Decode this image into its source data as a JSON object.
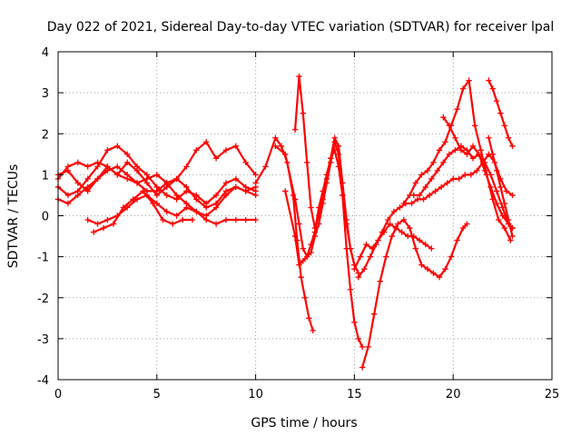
{
  "chart_data": {
    "type": "scatter",
    "title": "Day 022 of 2021, Sidereal Day-to-day VTEC variation (SDTVAR) for receiver lpal",
    "xlabel": "GPS time / hours",
    "ylabel": "SDTVAR / TECUs",
    "xlim": [
      0,
      25
    ],
    "ylim": [
      -4,
      4
    ],
    "xticks": [
      0,
      5,
      10,
      15,
      20,
      25
    ],
    "yticks": [
      -4,
      -3,
      -2,
      -1,
      0,
      1,
      2,
      3,
      4
    ],
    "grid": true,
    "marker": "+",
    "color": "#ff0000",
    "series": [
      {
        "x": [
          0.0,
          0.5,
          1.0,
          1.5,
          2.0,
          2.5,
          3.0,
          3.5,
          4.0,
          4.5,
          5.0,
          5.5,
          6.0,
          6.5,
          7.0,
          7.5,
          8.0,
          8.5,
          9.0,
          9.5,
          10.0
        ],
        "y": [
          1.0,
          1.1,
          0.8,
          0.6,
          0.9,
          1.2,
          1.0,
          1.3,
          1.1,
          0.8,
          0.5,
          0.7,
          0.9,
          1.2,
          1.6,
          1.8,
          1.4,
          1.6,
          1.7,
          1.3,
          1.0
        ]
      },
      {
        "x": [
          0.0,
          0.5,
          1.0,
          1.5,
          2.0,
          2.5,
          3.0,
          3.5,
          4.0,
          4.5,
          5.0,
          5.5,
          6.0,
          6.5,
          7.0,
          7.5,
          8.0,
          8.5,
          9.0,
          9.5,
          10.0
        ],
        "y": [
          0.7,
          0.5,
          0.6,
          0.9,
          1.2,
          1.6,
          1.7,
          1.5,
          1.2,
          1.0,
          0.7,
          0.5,
          0.4,
          0.6,
          0.5,
          0.3,
          0.5,
          0.8,
          0.9,
          0.7,
          0.6
        ]
      },
      {
        "x": [
          0.0,
          0.5,
          1.0,
          1.5,
          2.0,
          2.5,
          3.0,
          3.5,
          4.0,
          4.5,
          5.0,
          5.5,
          6.0,
          6.5,
          7.0,
          7.5,
          8.0,
          8.5,
          9.0,
          9.5,
          10.0
        ],
        "y": [
          0.4,
          0.3,
          0.5,
          0.7,
          0.9,
          1.1,
          1.2,
          1.0,
          0.8,
          0.6,
          0.6,
          0.8,
          0.9,
          0.7,
          0.4,
          0.2,
          0.3,
          0.6,
          0.7,
          0.6,
          0.5
        ]
      },
      {
        "x": [
          0.0,
          0.5,
          1.0,
          1.5,
          2.0,
          2.5,
          3.0,
          3.5,
          4.0,
          4.5,
          5.0,
          5.5,
          6.0,
          6.5,
          7.0,
          7.5,
          8.0,
          8.5,
          9.0,
          9.5,
          10.0
        ],
        "y": [
          0.9,
          1.2,
          1.3,
          1.2,
          1.3,
          1.2,
          1.0,
          0.9,
          0.8,
          0.9,
          1.0,
          0.8,
          0.5,
          0.3,
          0.1,
          0.0,
          0.2,
          0.5,
          0.7,
          0.6,
          0.7
        ]
      },
      {
        "x": [
          1.5,
          2.0,
          2.5,
          3.0,
          3.5,
          4.0,
          4.5,
          5.0,
          5.5,
          6.0,
          6.5,
          7.0,
          7.5,
          8.0,
          8.5,
          9.0,
          9.5,
          10.0
        ],
        "y": [
          -0.1,
          -0.2,
          -0.1,
          0.0,
          0.2,
          0.4,
          0.5,
          0.3,
          0.1,
          0.0,
          0.2,
          0.1,
          -0.1,
          -0.2,
          -0.1,
          -0.1,
          -0.1,
          -0.1
        ]
      },
      {
        "x": [
          1.8,
          2.3,
          2.8,
          3.3,
          3.8,
          4.3,
          4.8,
          5.3,
          5.8,
          6.3,
          6.8
        ],
        "y": [
          -0.4,
          -0.3,
          -0.2,
          0.2,
          0.4,
          0.6,
          0.3,
          -0.1,
          -0.2,
          -0.1,
          -0.1
        ]
      },
      {
        "x": [
          10.0,
          10.5,
          11.0,
          11.3,
          11.6,
          11.9,
          12.1,
          12.3,
          12.5,
          12.7,
          12.9
        ],
        "y": [
          0.8,
          1.2,
          1.9,
          1.7,
          1.3,
          0.5,
          -0.6,
          -1.5,
          -2.0,
          -2.5,
          -2.8
        ]
      },
      {
        "x": [
          11.0,
          11.5,
          12.0,
          12.2,
          12.4,
          12.6,
          12.8,
          13.0,
          13.2,
          13.4,
          13.6,
          13.8,
          14.0,
          14.2,
          14.4,
          14.6,
          14.8,
          15.0,
          15.2,
          15.4
        ],
        "y": [
          1.7,
          1.5,
          0.4,
          -0.2,
          -0.8,
          -1.0,
          -0.9,
          -0.5,
          -0.2,
          0.3,
          0.8,
          1.3,
          1.8,
          1.5,
          0.5,
          -0.8,
          -1.8,
          -2.6,
          -3.0,
          -3.2
        ]
      },
      {
        "x": [
          11.5,
          12.0,
          12.2,
          12.4,
          12.6,
          12.8,
          13.0,
          13.2,
          13.4,
          13.6,
          13.8,
          14.0,
          14.2,
          14.4,
          14.6,
          14.8,
          15.0,
          15.2
        ],
        "y": [
          0.6,
          -0.5,
          -1.2,
          -1.1,
          -1.0,
          -0.7,
          -0.4,
          0.2,
          0.6,
          1.0,
          1.4,
          1.9,
          1.7,
          0.8,
          -0.1,
          -0.8,
          -1.2,
          -1.4
        ]
      },
      {
        "x": [
          12.0,
          12.2,
          12.4,
          12.6,
          12.8,
          13.0,
          13.2,
          13.4,
          13.6,
          13.8,
          14.0,
          14.2,
          14.4,
          14.6,
          14.8,
          15.0
        ],
        "y": [
          2.1,
          3.4,
          2.5,
          1.3,
          0.2,
          -0.3,
          0.0,
          0.4,
          0.9,
          1.4,
          1.6,
          1.2,
          0.5,
          -0.2,
          -0.8,
          -1.2
        ]
      },
      {
        "x": [
          15.0,
          15.3,
          15.6,
          15.9,
          16.2,
          16.5,
          16.8,
          17.1,
          17.4,
          17.7,
          18.0,
          18.3,
          18.6,
          18.9
        ],
        "y": [
          -1.3,
          -1.0,
          -0.7,
          -0.8,
          -0.6,
          -0.4,
          -0.2,
          -0.3,
          -0.4,
          -0.5,
          -0.5,
          -0.6,
          -0.7,
          -0.8
        ]
      },
      {
        "x": [
          15.4,
          15.7,
          16.0,
          16.3,
          16.6,
          16.9,
          17.2,
          17.5,
          17.8,
          18.1,
          18.4,
          18.7,
          19.0,
          19.3,
          19.6,
          19.9,
          20.2,
          20.5,
          20.7
        ],
        "y": [
          -3.7,
          -3.2,
          -2.4,
          -1.6,
          -1.0,
          -0.5,
          -0.2,
          -0.1,
          -0.3,
          -0.8,
          -1.2,
          -1.3,
          -1.4,
          -1.5,
          -1.3,
          -1.0,
          -0.6,
          -0.3,
          -0.2
        ]
      },
      {
        "x": [
          15.2,
          15.5,
          15.8,
          16.1,
          16.4,
          16.7,
          17.0,
          17.3,
          17.6,
          17.9,
          18.2,
          18.5,
          18.8,
          19.1,
          19.4,
          19.7,
          20.0,
          20.3,
          20.6,
          20.9,
          21.2,
          21.5,
          21.8,
          22.1,
          22.4,
          22.7,
          23.0
        ],
        "y": [
          -1.5,
          -1.3,
          -1.0,
          -0.7,
          -0.4,
          -0.1,
          0.1,
          0.2,
          0.3,
          0.3,
          0.4,
          0.4,
          0.5,
          0.6,
          0.7,
          0.8,
          0.9,
          0.9,
          1.0,
          1.0,
          1.1,
          1.3,
          1.5,
          1.3,
          0.9,
          0.6,
          0.5
        ]
      },
      {
        "x": [
          17.5,
          17.8,
          18.1,
          18.4,
          18.7,
          19.0,
          19.3,
          19.6,
          19.9,
          20.2,
          20.5,
          20.8,
          21.1,
          21.4,
          21.7,
          22.0,
          22.3,
          22.6,
          22.9
        ],
        "y": [
          0.3,
          0.5,
          0.8,
          1.0,
          1.1,
          1.3,
          1.6,
          1.8,
          2.2,
          2.6,
          3.1,
          3.3,
          2.2,
          1.6,
          1.0,
          0.4,
          -0.1,
          -0.3,
          -0.6
        ]
      },
      {
        "x": [
          18.0,
          18.3,
          18.6,
          18.9,
          19.2,
          19.5,
          19.8,
          20.1,
          20.4,
          20.7,
          21.0,
          21.3,
          21.6,
          21.9,
          22.2,
          22.5,
          22.8,
          23.0
        ],
        "y": [
          0.5,
          0.5,
          0.7,
          0.9,
          1.1,
          1.3,
          1.5,
          1.6,
          1.7,
          1.6,
          1.4,
          1.5,
          1.3,
          1.0,
          0.6,
          0.2,
          -0.2,
          -0.3
        ]
      },
      {
        "x": [
          19.5,
          19.8,
          20.1,
          20.4,
          20.7,
          21.0,
          21.3,
          21.6,
          21.9,
          22.2,
          22.5,
          22.8,
          23.0
        ],
        "y": [
          2.4,
          2.2,
          1.9,
          1.6,
          1.5,
          1.7,
          1.5,
          1.1,
          0.7,
          0.3,
          0.0,
          -0.2,
          -0.3
        ]
      },
      {
        "x": [
          21.8,
          22.0,
          22.2,
          22.4,
          22.6,
          22.8,
          23.0
        ],
        "y": [
          3.3,
          3.1,
          2.8,
          2.5,
          2.2,
          1.9,
          1.7
        ]
      },
      {
        "x": [
          21.8,
          22.0,
          22.2,
          22.4,
          22.6,
          22.8,
          23.0
        ],
        "y": [
          1.9,
          1.5,
          1.1,
          0.7,
          0.3,
          -0.1,
          -0.5
        ]
      }
    ]
  }
}
